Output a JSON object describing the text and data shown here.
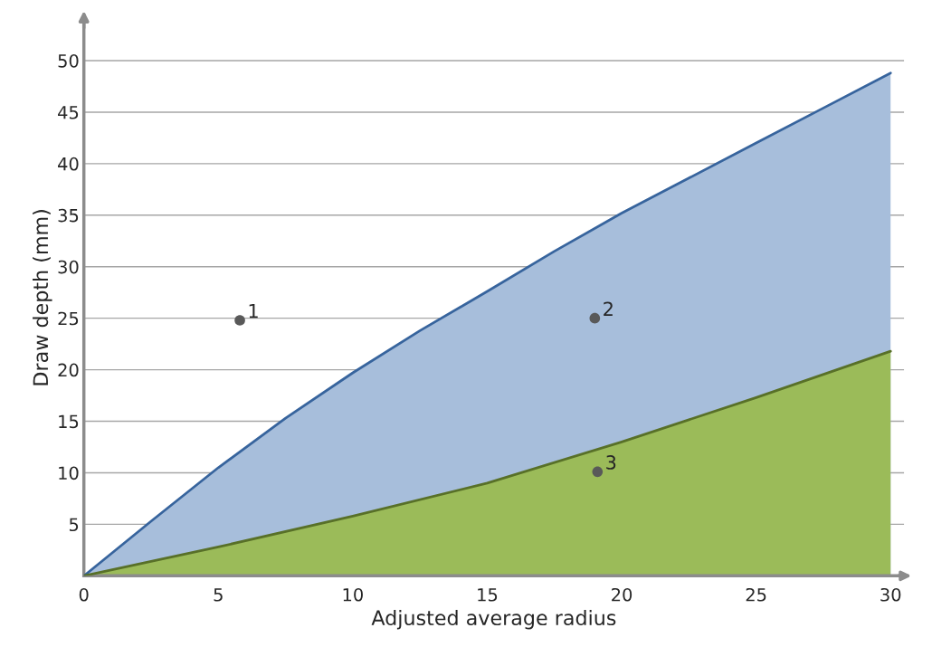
{
  "chart_data": {
    "type": "area",
    "xlabel": "Adjusted average radius",
    "ylabel": "Draw depth (mm)",
    "xlim": [
      0,
      30.5
    ],
    "ylim": [
      0,
      54
    ],
    "xticks": [
      0,
      5,
      10,
      15,
      20,
      25,
      30
    ],
    "yticks": [
      5,
      10,
      15,
      20,
      25,
      30,
      35,
      40,
      45,
      50
    ],
    "grid": "y",
    "legend": false,
    "series": [
      {
        "color": "#a7bedb",
        "x": [
          0,
          2.5,
          5,
          7.5,
          10,
          12.5,
          15,
          17.5,
          20,
          22.5,
          25,
          27.5,
          30
        ],
        "values": [
          0,
          5.3,
          10.5,
          15.3,
          19.7,
          23.8,
          27.6,
          31.5,
          35.2,
          38.6,
          42,
          45.4,
          48.8
        ]
      },
      {
        "color": "#9bbb59",
        "x": [
          0,
          5,
          10,
          15,
          20,
          25,
          30
        ],
        "values": [
          0,
          2.8,
          5.8,
          9,
          13,
          17.3,
          21.8
        ]
      },
      {
        "type": "scatter",
        "color": "#595959",
        "marker": "circle",
        "x": [
          5.8,
          19.0,
          19.1
        ],
        "values": [
          24.8,
          25.0,
          10.1
        ]
      }
    ],
    "annotations": [
      {
        "text": "1",
        "x": 5.8,
        "y": 24.8
      },
      {
        "text": "2",
        "x": 19.0,
        "y": 25.0
      },
      {
        "text": "3",
        "x": 19.1,
        "y": 10.1
      }
    ]
  }
}
